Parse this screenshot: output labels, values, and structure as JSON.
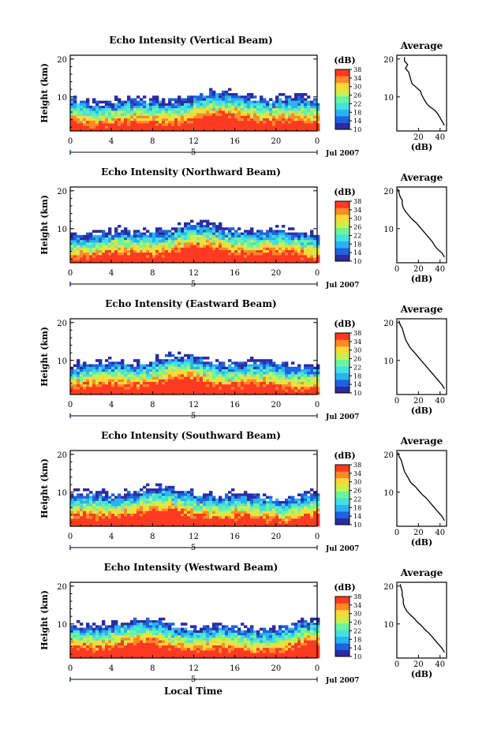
{
  "chart_data": {
    "type": "heatmap",
    "panels": [
      {
        "title": "Echo Intensity (Vertical Beam)",
        "avg_profile": [
          [
            44,
            2.5
          ],
          [
            42,
            3.5
          ],
          [
            40,
            4.5
          ],
          [
            38,
            5.5
          ],
          [
            35,
            6.5
          ],
          [
            30,
            7.5
          ],
          [
            27,
            8.5
          ],
          [
            25,
            9.5
          ],
          [
            23,
            10.5
          ],
          [
            22,
            11.5
          ],
          [
            18,
            12.5
          ],
          [
            14,
            13.5
          ],
          [
            13,
            14.5
          ],
          [
            12,
            15.5
          ],
          [
            11,
            16.5
          ],
          [
            8,
            17.5
          ],
          [
            10,
            18.5
          ],
          [
            7,
            19.5
          ],
          [
            7,
            20.5
          ]
        ]
      },
      {
        "title": "Echo Intensity (Northward Beam)",
        "avg_profile": [
          [
            44,
            2.5
          ],
          [
            42,
            3.5
          ],
          [
            38,
            4.5
          ],
          [
            35,
            5.5
          ],
          [
            33,
            6.5
          ],
          [
            30,
            7.5
          ],
          [
            27,
            8.5
          ],
          [
            24,
            9.5
          ],
          [
            21,
            10.5
          ],
          [
            18,
            11.5
          ],
          [
            14,
            12.5
          ],
          [
            11,
            13.5
          ],
          [
            8,
            14.5
          ],
          [
            6,
            15.5
          ],
          [
            5,
            16.5
          ],
          [
            5,
            17.5
          ],
          [
            3,
            18.5
          ],
          [
            2,
            19.5
          ],
          [
            1,
            20.5
          ]
        ]
      },
      {
        "title": "Echo Intensity (Eastward Beam)",
        "avg_profile": [
          [
            44,
            2.5
          ],
          [
            42,
            3.5
          ],
          [
            39,
            4.5
          ],
          [
            36,
            5.5
          ],
          [
            33,
            6.5
          ],
          [
            30,
            7.5
          ],
          [
            27,
            8.5
          ],
          [
            24,
            9.5
          ],
          [
            21,
            10.5
          ],
          [
            18,
            11.5
          ],
          [
            15,
            12.5
          ],
          [
            12,
            13.5
          ],
          [
            10,
            14.5
          ],
          [
            8,
            15.5
          ],
          [
            7,
            16.5
          ],
          [
            6,
            17.5
          ],
          [
            5,
            18.5
          ],
          [
            3,
            19.5
          ],
          [
            2,
            20.5
          ]
        ]
      },
      {
        "title": "Echo Intensity (Southward Beam)",
        "avg_profile": [
          [
            44,
            2.5
          ],
          [
            42,
            3.5
          ],
          [
            39,
            4.5
          ],
          [
            36,
            5.5
          ],
          [
            33,
            6.5
          ],
          [
            30,
            7.5
          ],
          [
            27,
            8.5
          ],
          [
            23,
            9.5
          ],
          [
            20,
            10.5
          ],
          [
            17,
            11.5
          ],
          [
            13,
            12.5
          ],
          [
            11,
            13.5
          ],
          [
            9,
            14.5
          ],
          [
            7,
            15.5
          ],
          [
            6,
            16.5
          ],
          [
            5,
            17.5
          ],
          [
            4,
            18.5
          ],
          [
            2,
            19.5
          ],
          [
            1,
            20.5
          ]
        ]
      },
      {
        "title": "Echo Intensity (Westward Beam)",
        "avg_profile": [
          [
            44,
            2.5
          ],
          [
            42,
            3.5
          ],
          [
            39,
            4.5
          ],
          [
            36,
            5.5
          ],
          [
            33,
            6.5
          ],
          [
            30,
            7.5
          ],
          [
            26,
            8.5
          ],
          [
            23,
            9.5
          ],
          [
            19,
            10.5
          ],
          [
            16,
            11.5
          ],
          [
            12,
            12.5
          ],
          [
            9,
            13.5
          ],
          [
            7,
            14.5
          ],
          [
            6,
            15.5
          ],
          [
            6,
            16.5
          ],
          [
            5,
            17.5
          ],
          [
            5,
            18.5
          ],
          [
            4,
            19.5
          ],
          [
            3,
            20.5
          ]
        ]
      }
    ],
    "main": {
      "x_ticks": [
        "0",
        "4",
        "8",
        "12",
        "16",
        "20",
        "0"
      ],
      "y_ticks": [
        "20",
        "10"
      ],
      "xlim": [
        0,
        24
      ],
      "ylim": [
        1,
        21
      ],
      "ylabel": "Height (km)",
      "xlabel": "Local Time",
      "day_label": "5",
      "date_label": "Jul 2007"
    },
    "colorbar": {
      "label": "(dB)",
      "ticks": [
        "38",
        "34",
        "30",
        "26",
        "22",
        "18",
        "14",
        "10"
      ],
      "range": [
        10,
        38
      ],
      "colors": [
        "#2c2ca0",
        "#1f63e0",
        "#2bb2f0",
        "#45e0e0",
        "#6bf4a0",
        "#c8f050",
        "#ffd838",
        "#ff8a28",
        "#ff3a22"
      ]
    },
    "avg": {
      "title": "Average",
      "xlabel": "(dB)",
      "x_ticks_panel1": [
        "20",
        "40"
      ],
      "x_ticks_panel1_values": [
        20,
        40
      ],
      "x_ticks": [
        "0",
        "20",
        "40"
      ],
      "x_ticks_values": [
        0,
        20,
        40
      ],
      "y_ticks": [
        "20",
        "10"
      ],
      "xlim": [
        0,
        46
      ],
      "ylim": [
        1,
        21
      ]
    }
  }
}
